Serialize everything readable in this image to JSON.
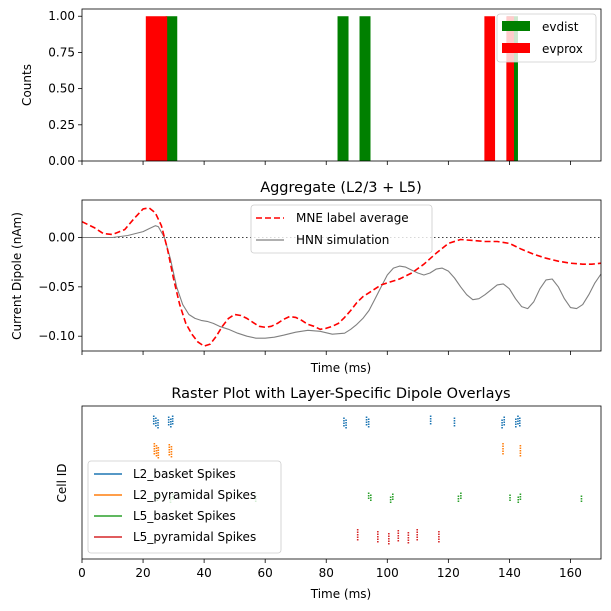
{
  "chart_data": [
    {
      "type": "bar",
      "xlim": [
        0,
        170
      ],
      "ylim": [
        0,
        1.05
      ],
      "ylabel": "Counts",
      "yticks": [
        0.0,
        0.25,
        0.5,
        0.75,
        1.0
      ],
      "ytick_labels": [
        "0.00",
        "0.25",
        "0.50",
        "0.75",
        "1.00"
      ],
      "xticks": [
        0,
        20,
        40,
        60,
        80,
        100,
        120,
        140,
        160
      ],
      "legend_position": "top-right",
      "series": [
        {
          "name": "evdist",
          "color": "#008000",
          "bins": [
            [
              27.4,
              31.2
            ],
            [
              83.7,
              87.3
            ],
            [
              90.9,
              94.5
            ],
            [
              139.2,
              142.8
            ]
          ],
          "value": 1
        },
        {
          "name": "evprox",
          "color": "#ff0000",
          "bins": [
            [
              20.9,
              27.9
            ],
            [
              131.8,
              135.3
            ],
            [
              139.0,
              141.5
            ]
          ],
          "value": 1
        }
      ]
    },
    {
      "type": "line",
      "title": "Aggregate (L2/3 + L5)",
      "xlabel": "Time (ms)",
      "ylabel": "Current Dipole (nAm)",
      "xlim": [
        0,
        170
      ],
      "ylim": [
        -0.115,
        0.038
      ],
      "yticks": [
        0.0,
        -0.05,
        -0.1
      ],
      "ytick_labels": [
        "0.00",
        "−0.05",
        "−0.10"
      ],
      "xticks": [
        0,
        20,
        40,
        60,
        80,
        100,
        120,
        140,
        160
      ],
      "zero_line": true,
      "legend_position": "upper center",
      "series": [
        {
          "name": "MNE label average",
          "color": "#ff0000",
          "dash": "dashed",
          "x": [
            0,
            4,
            7,
            10,
            14,
            17,
            20,
            22,
            24,
            26,
            28,
            30,
            32,
            34,
            36,
            38,
            40,
            42,
            44,
            46,
            48,
            50,
            52,
            54,
            56,
            58,
            60,
            62,
            64,
            66,
            68,
            70,
            72,
            74,
            76,
            78,
            80,
            82,
            84,
            86,
            88,
            90,
            92,
            94,
            96,
            98,
            100,
            104,
            108,
            112,
            116,
            120,
            124,
            128,
            132,
            136,
            140,
            144,
            148,
            152,
            156,
            160,
            164,
            167,
            170
          ],
          "y": [
            0.016,
            0.01,
            0.004,
            0.003,
            0.008,
            0.019,
            0.029,
            0.03,
            0.025,
            0.012,
            -0.012,
            -0.042,
            -0.068,
            -0.087,
            -0.098,
            -0.106,
            -0.11,
            -0.108,
            -0.1,
            -0.09,
            -0.082,
            -0.078,
            -0.079,
            -0.082,
            -0.086,
            -0.09,
            -0.091,
            -0.09,
            -0.087,
            -0.083,
            -0.08,
            -0.081,
            -0.084,
            -0.088,
            -0.09,
            -0.093,
            -0.092,
            -0.09,
            -0.087,
            -0.081,
            -0.074,
            -0.066,
            -0.06,
            -0.056,
            -0.052,
            -0.048,
            -0.046,
            -0.042,
            -0.036,
            -0.027,
            -0.016,
            -0.006,
            -0.002,
            -0.003,
            -0.004,
            -0.004,
            -0.006,
            -0.012,
            -0.017,
            -0.021,
            -0.024,
            -0.026,
            -0.027,
            -0.027,
            -0.026
          ]
        },
        {
          "name": "HNN simulation",
          "color": "#808080",
          "dash": "solid",
          "x": [
            0,
            5,
            10,
            15,
            20,
            22,
            24,
            25,
            27,
            29,
            31,
            33,
            35,
            37,
            39,
            41,
            43,
            45,
            48,
            51,
            54,
            57,
            60,
            63,
            66,
            70,
            74,
            78,
            82,
            86,
            88,
            90,
            92,
            94,
            96,
            98,
            100,
            102,
            104,
            106,
            108,
            110,
            112,
            114,
            116,
            118,
            120,
            122,
            124,
            126,
            128,
            130,
            132,
            134,
            136,
            138,
            140,
            142,
            144,
            146,
            148,
            150,
            152,
            154,
            156,
            158,
            160,
            162,
            164,
            166,
            168,
            170
          ],
          "y": [
            0.0,
            0.0,
            0.0,
            0.002,
            0.006,
            0.009,
            0.012,
            0.011,
            0.0,
            -0.022,
            -0.05,
            -0.068,
            -0.078,
            -0.082,
            -0.084,
            -0.085,
            -0.087,
            -0.09,
            -0.093,
            -0.097,
            -0.1,
            -0.102,
            -0.102,
            -0.101,
            -0.099,
            -0.096,
            -0.094,
            -0.095,
            -0.098,
            -0.097,
            -0.093,
            -0.088,
            -0.082,
            -0.074,
            -0.062,
            -0.05,
            -0.038,
            -0.031,
            -0.029,
            -0.03,
            -0.033,
            -0.036,
            -0.038,
            -0.036,
            -0.032,
            -0.031,
            -0.034,
            -0.041,
            -0.05,
            -0.058,
            -0.063,
            -0.062,
            -0.058,
            -0.053,
            -0.048,
            -0.047,
            -0.052,
            -0.062,
            -0.07,
            -0.072,
            -0.065,
            -0.052,
            -0.043,
            -0.042,
            -0.05,
            -0.062,
            -0.071,
            -0.072,
            -0.068,
            -0.058,
            -0.046,
            -0.037
          ]
        }
      ]
    },
    {
      "type": "scatter",
      "title": "Raster Plot with Layer-Specific Dipole Overlays",
      "xlabel": "Time (ms)",
      "ylabel": "Cell ID",
      "xlim": [
        0,
        170
      ],
      "xticks": [
        0,
        20,
        40,
        60,
        80,
        100,
        120,
        140,
        160
      ],
      "xtick_labels": [
        "0",
        "20",
        "40",
        "60",
        "80",
        "100",
        "120",
        "140",
        "160"
      ],
      "legend_position": "lower left",
      "series": [
        {
          "name": "L2_basket Spikes",
          "color": "#1f77b4",
          "row": 0,
          "times": [
            23.5,
            24.2,
            24.9,
            28.4,
            29.1,
            29.7,
            85.8,
            86.5,
            93.2,
            93.9,
            114.2,
            122.0,
            137.6,
            138.3,
            142.1,
            142.8,
            143.4
          ]
        },
        {
          "name": "L2_pyramidal Spikes",
          "color": "#ff7f0e",
          "row": 1,
          "times": [
            23.7,
            24.4,
            25.0,
            28.6,
            29.3,
            137.9,
            143.6
          ]
        },
        {
          "name": "L5_basket Spikes",
          "color": "#2ca02c",
          "row": 2,
          "times": [
            24.0,
            24.7,
            29.0,
            29.8,
            56.9,
            93.9,
            94.6,
            101.1,
            101.8,
            123.3,
            124.1,
            140.2,
            142.9,
            143.6,
            163.6
          ]
        },
        {
          "name": "L5_pyramidal Spikes",
          "color": "#d62728",
          "row": 3,
          "times": [
            90.3,
            96.9,
            100.5,
            103.6,
            106.9,
            109.8,
            116.9
          ]
        }
      ]
    }
  ]
}
